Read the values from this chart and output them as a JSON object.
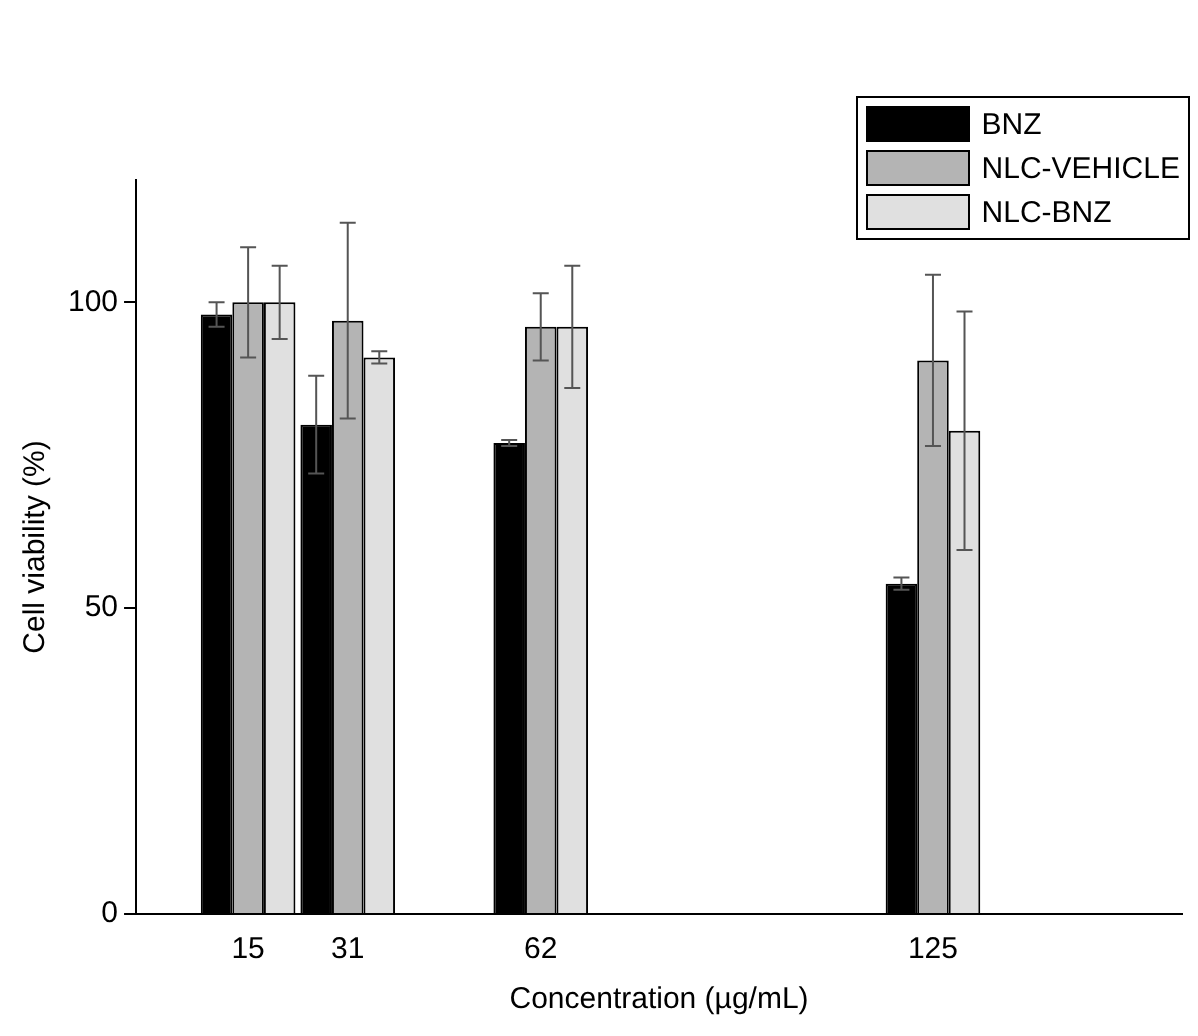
{
  "chart_data": {
    "type": "bar",
    "xlabel": "Concentration (µg/mL)",
    "ylabel": "Cell viability (%)",
    "x": [
      15,
      31,
      62,
      125
    ],
    "xlim": [
      -3,
      165
    ],
    "xticks": [
      15,
      31,
      62,
      125
    ],
    "ylim": [
      0,
      120
    ],
    "yticks": [
      0,
      50,
      100
    ],
    "grid": false,
    "legend": "top right",
    "series": [
      {
        "name": "BNZ",
        "color": "#000000",
        "values": [
          98,
          80,
          77,
          54
        ],
        "errors": [
          2,
          8,
          0.5,
          1
        ]
      },
      {
        "name": "NLC-VEHICLE",
        "color": "#b4b4b4",
        "values": [
          100,
          97,
          96,
          90.5
        ],
        "errors": [
          9,
          16,
          5.5,
          14
        ]
      },
      {
        "name": "NLC-BNZ",
        "color": "#e0e0e0",
        "values": [
          100,
          91,
          96,
          79
        ],
        "errors": [
          6,
          1,
          10,
          19.5
        ]
      }
    ]
  }
}
